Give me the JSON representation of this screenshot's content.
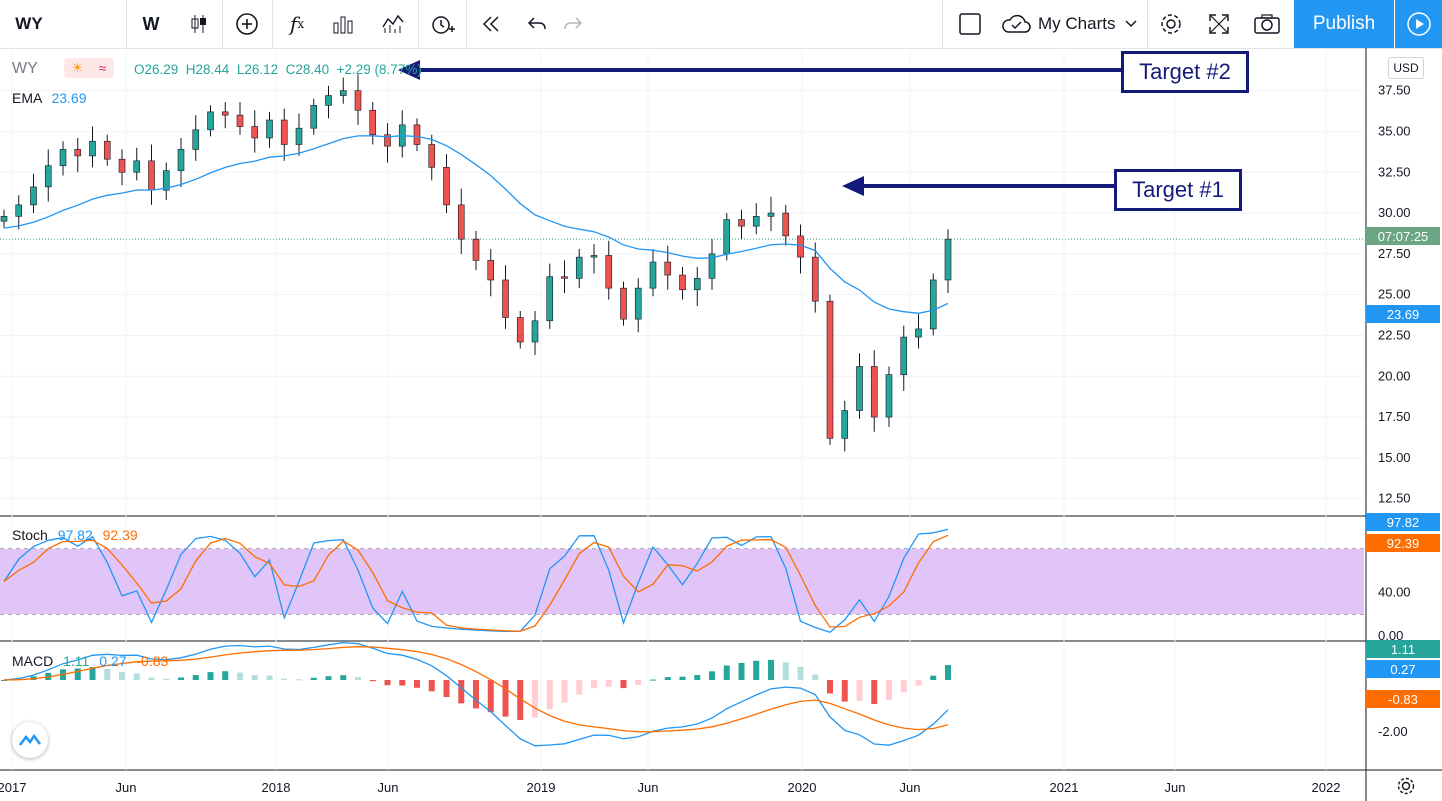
{
  "toolbar": {
    "symbol": "WY",
    "interval": "W",
    "my_charts_label": "My Charts",
    "publish_label": "Publish",
    "icons": [
      "candles-icon",
      "add-symbol-icon",
      "indicators-icon",
      "bar-style-icon",
      "templates-icon",
      "alert-icon",
      "replay-icon",
      "undo-icon",
      "redo-icon",
      "layout-icon",
      "cloud-icon",
      "chevron-down-icon",
      "settings-icon",
      "fullscreen-icon",
      "camera-icon",
      "play-icon"
    ]
  },
  "legend": {
    "symbol": "WY",
    "ohlc": "O26.29  H28.44  L26.12  C28.40  +2.29 (8.77%)",
    "ema_label": "EMA",
    "ema_value": "23.69",
    "stoch_label": "Stoch",
    "stoch_k": "97.82",
    "stoch_d": "92.39",
    "macd_label": "MACD",
    "macd_v1": "1.11",
    "macd_v2": "0.27",
    "macd_v3": "-0.83"
  },
  "annotations": {
    "target1": "Target #1",
    "target2": "Target #2"
  },
  "price_axis": {
    "currency": "USD",
    "countdown": "07:07:25",
    "ema_tag": "23.69",
    "stoch_k_tag": "97.82",
    "stoch_d_tag": "92.39",
    "macd_tags": [
      "1.11",
      "0.27",
      "-0.83"
    ]
  },
  "colors": {
    "up": "#26a69a",
    "down": "#ef5350",
    "ema": "#2196f3",
    "stoch_k": "#2196f3",
    "stoch_d": "#ff6d00",
    "stoch_band": "#e1c4f8",
    "accent": "#2196f3",
    "annotation": "#141a7a"
  },
  "chart_data": {
    "type": "candlestick",
    "price_ticks": [
      "37.50",
      "35.00",
      "32.50",
      "30.00",
      "27.50",
      "25.00",
      "22.50",
      "20.00",
      "17.50",
      "15.00",
      "12.50"
    ],
    "price_range": [
      11.5,
      39.5
    ],
    "stoch_ticks": [
      "40.00",
      "0.00"
    ],
    "macd_ticks": [
      "-2.00"
    ],
    "time_labels": [
      "2017",
      "Jun",
      "2018",
      "Jun",
      "2019",
      "Jun",
      "2020",
      "Jun",
      "2021",
      "Jun",
      "2022"
    ],
    "closes": [
      29.8,
      30.5,
      31.6,
      32.9,
      33.9,
      33.5,
      34.4,
      33.3,
      32.5,
      33.2,
      31.4,
      32.6,
      33.9,
      35.1,
      36.2,
      36.0,
      35.3,
      34.6,
      35.7,
      34.2,
      35.2,
      36.6,
      37.2,
      37.5,
      36.3,
      34.8,
      34.1,
      35.4,
      34.2,
      32.8,
      30.5,
      28.4,
      27.1,
      25.9,
      23.6,
      22.1,
      23.4,
      26.1,
      26.0,
      27.3,
      27.4,
      25.4,
      23.5,
      25.4,
      27.0,
      26.2,
      25.3,
      26.0,
      27.5,
      29.6,
      29.2,
      29.8,
      30.0,
      28.6,
      27.3,
      24.6,
      16.2,
      17.9,
      20.6,
      17.5,
      20.1,
      22.4,
      22.9,
      25.9,
      28.4
    ],
    "ema_last": 23.69,
    "stoch_k_last": 97.82,
    "stoch_d_last": 92.39,
    "macd_last": [
      1.11,
      0.27,
      -0.83
    ]
  }
}
